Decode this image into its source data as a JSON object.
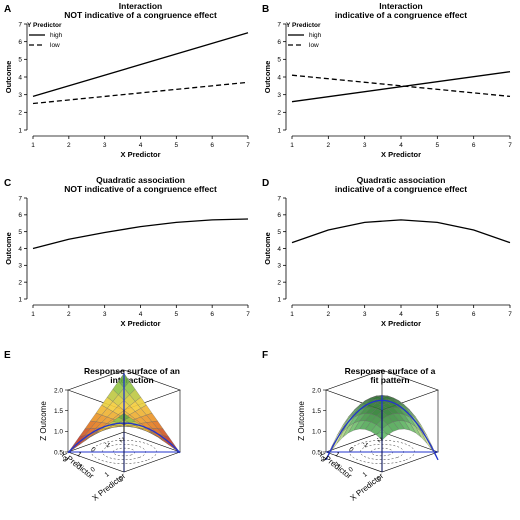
{
  "chart_data": [
    {
      "panel": "A",
      "type": "line",
      "title": "Interaction\nNOT indicative of a congruence effect",
      "xlabel": "X Predictor",
      "ylabel": "Outcome",
      "xlim": [
        1,
        7
      ],
      "ylim": [
        1,
        7
      ],
      "x": [
        1,
        7
      ],
      "legend_title": "Y Predictor",
      "series": [
        {
          "name": "high",
          "style": "solid",
          "values": [
            2.9,
            6.5
          ]
        },
        {
          "name": "low",
          "style": "dashed",
          "values": [
            2.5,
            3.7
          ]
        }
      ]
    },
    {
      "panel": "B",
      "type": "line",
      "title": "Interaction\nindicative of a congruence effect",
      "xlabel": "X Predictor",
      "ylabel": "Outcome",
      "xlim": [
        1,
        7
      ],
      "ylim": [
        1,
        7
      ],
      "x": [
        1,
        7
      ],
      "legend_title": "Y Predictor",
      "series": [
        {
          "name": "high",
          "style": "solid",
          "values": [
            2.6,
            4.3
          ]
        },
        {
          "name": "low",
          "style": "dashed",
          "values": [
            4.1,
            2.9
          ]
        }
      ]
    },
    {
      "panel": "C",
      "type": "line",
      "title": "Quadratic association\nNOT indicative of a congruence effect",
      "xlabel": "X Predictor",
      "ylabel": "Outcome",
      "xlim": [
        1,
        7
      ],
      "ylim": [
        1,
        7
      ],
      "x": [
        1,
        2,
        3,
        4,
        5,
        6,
        7
      ],
      "series": [
        {
          "style": "solid",
          "values": [
            4.0,
            4.55,
            4.95,
            5.3,
            5.55,
            5.7,
            5.75
          ]
        }
      ]
    },
    {
      "panel": "D",
      "type": "line",
      "title": "Quadratic association\nindicative of a congruence effect",
      "xlabel": "X Predictor",
      "ylabel": "Outcome",
      "xlim": [
        1,
        7
      ],
      "ylim": [
        1,
        7
      ],
      "x": [
        1,
        2,
        3,
        4,
        5,
        6,
        7
      ],
      "series": [
        {
          "style": "solid",
          "values": [
            4.35,
            5.1,
            5.55,
            5.7,
            5.55,
            5.1,
            4.35
          ]
        }
      ]
    },
    {
      "panel": "E",
      "type": "surface",
      "title": "Response surface of an\ninteraction",
      "xlabel": "X Predictor",
      "ylabel": "Y Predictor",
      "zlabel": "Z Outcome",
      "xlim": [
        -2,
        2
      ],
      "ylim": [
        -2,
        2
      ],
      "zlim": [
        0.5,
        2.0
      ],
      "function": "interaction",
      "colors": [
        "#c0392b",
        "#e67e22",
        "#f4d03f",
        "#8bc34a",
        "#2e7d32"
      ]
    },
    {
      "panel": "F",
      "type": "surface",
      "title": "Response surface of a\nfit pattern",
      "xlabel": "X Predictor",
      "ylabel": "Y Predictor",
      "zlabel": "Z Outcome",
      "xlim": [
        -2,
        2
      ],
      "ylim": [
        -2,
        2
      ],
      "zlim": [
        0.5,
        2.0
      ],
      "function": "fit",
      "colors": [
        "#e6ee9c",
        "#aed581",
        "#66bb6a",
        "#2e7d32",
        "#1b5e20"
      ]
    }
  ],
  "ticks": {
    "line_x": [
      "1",
      "2",
      "3",
      "4",
      "5",
      "6",
      "7"
    ],
    "line_y": [
      "1",
      "2",
      "3",
      "4",
      "5",
      "6",
      "7"
    ],
    "z": [
      "0.5",
      "1.0",
      "1.5",
      "2.0"
    ],
    "xy3d": [
      "-2",
      "-1",
      "0",
      "1",
      "2"
    ]
  }
}
